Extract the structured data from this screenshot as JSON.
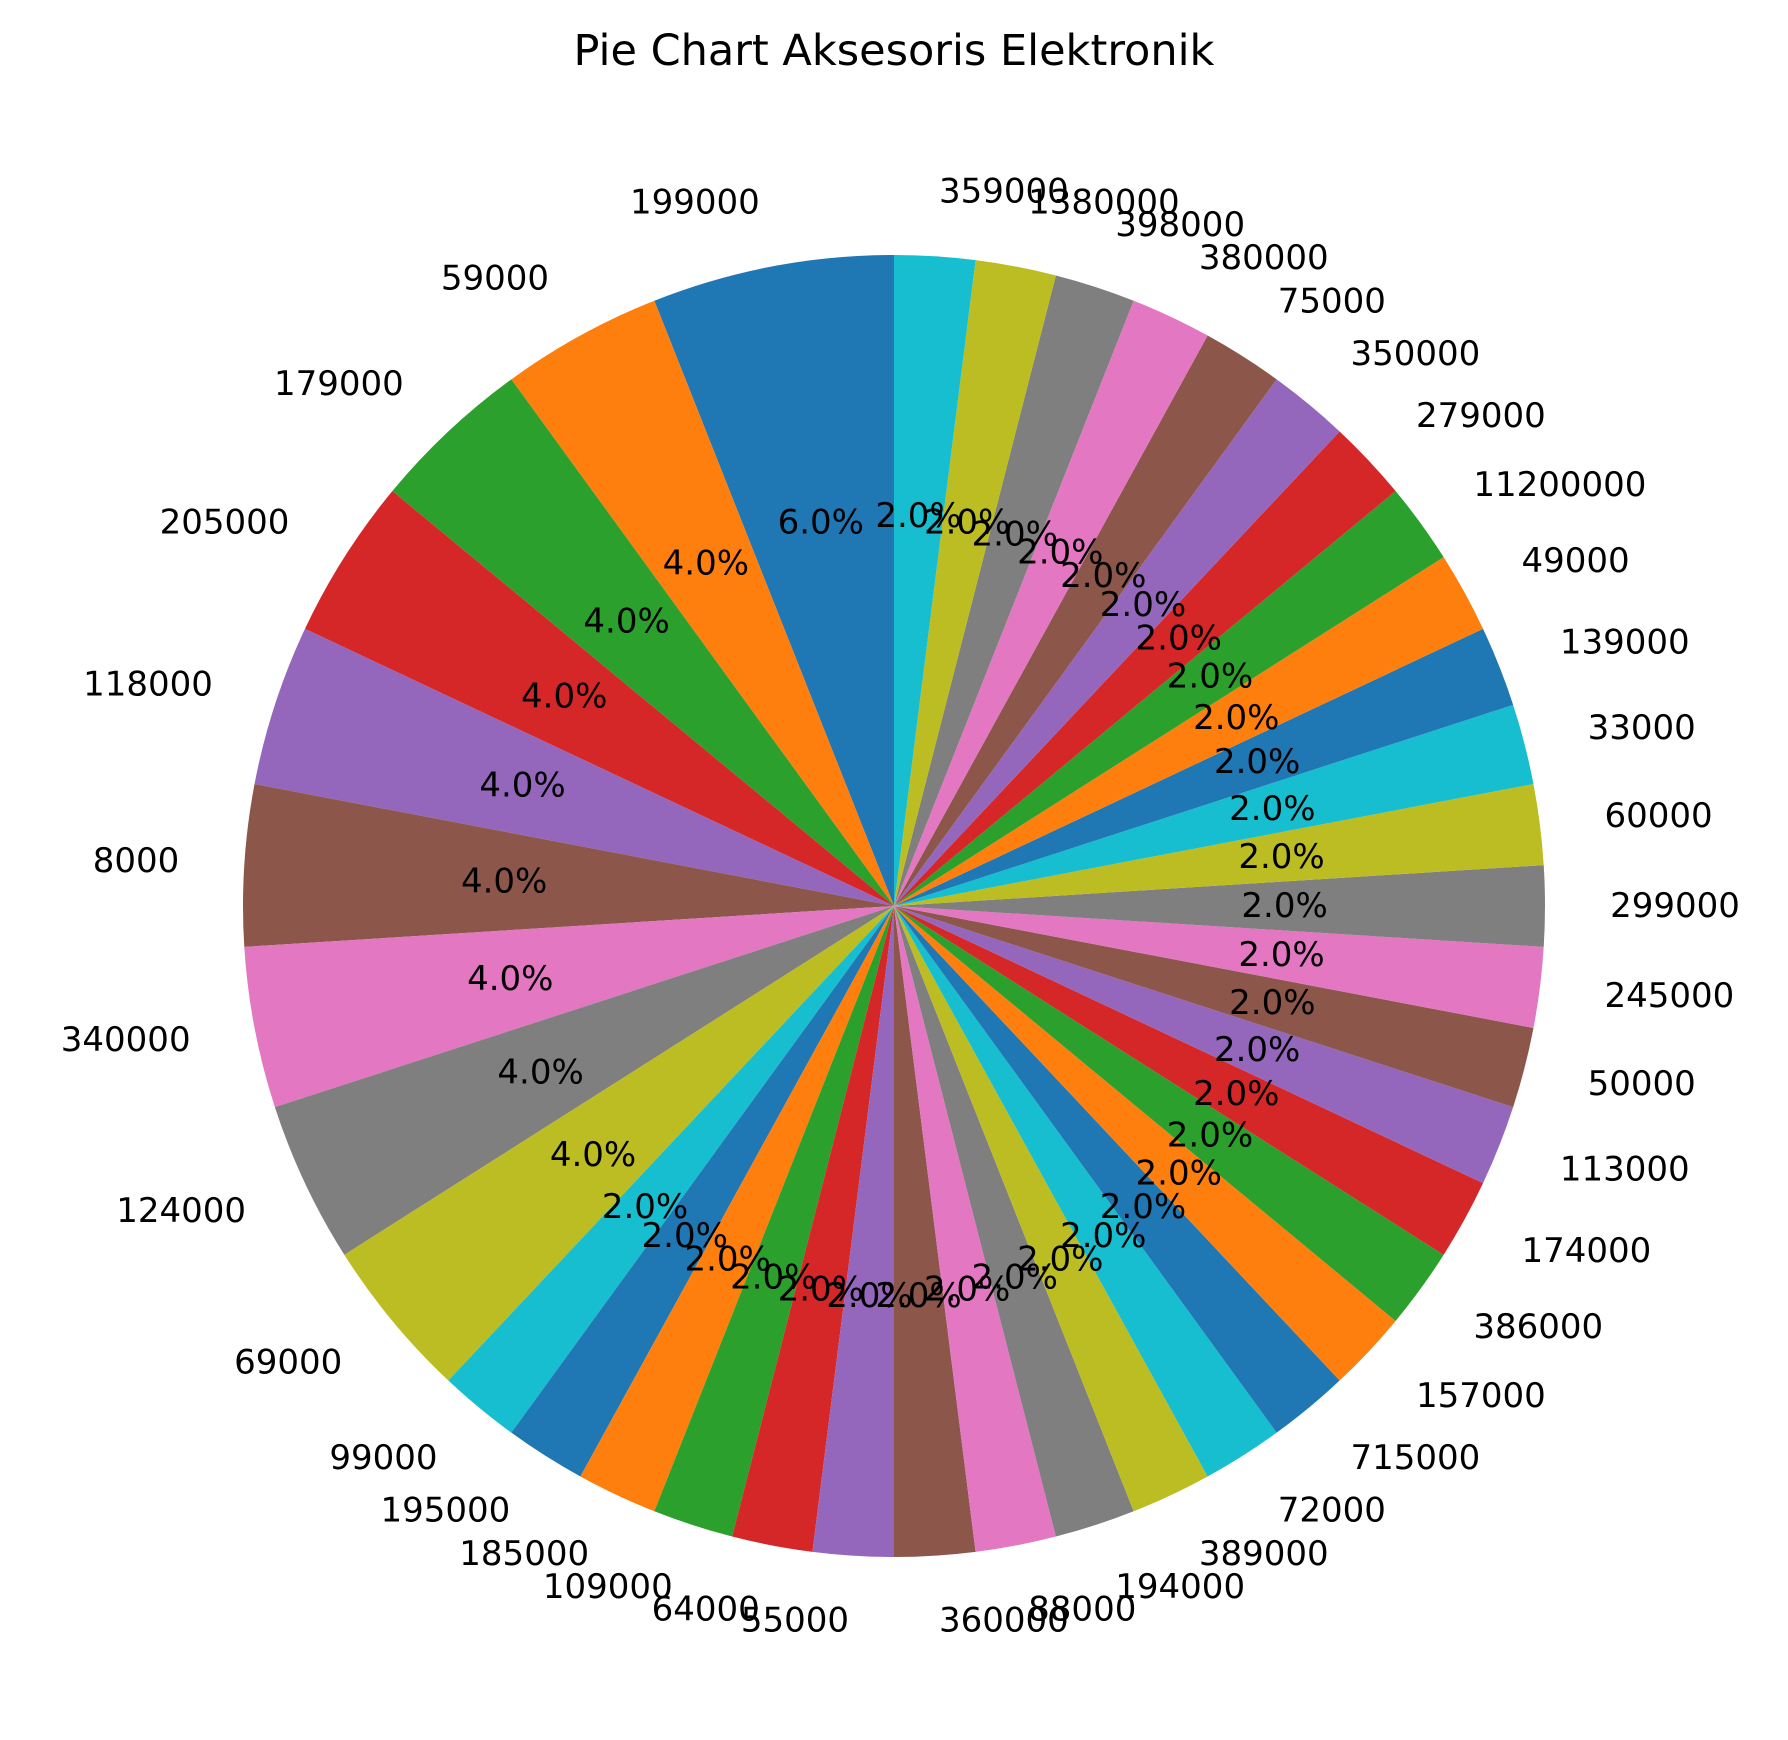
{
  "chart_data": {
    "type": "pie",
    "title": "Pie Chart Aksesoris Elektronik",
    "start_angle_deg": 90,
    "direction": "counterclockwise",
    "labels": [
      "199000",
      "59000",
      "179000",
      "205000",
      "118000",
      "8000",
      "340000",
      "124000",
      "69000",
      "99000",
      "195000",
      "185000",
      "109000",
      "64000",
      "55000",
      "360000",
      "88000",
      "194000",
      "389000",
      "72000",
      "715000",
      "157000",
      "386000",
      "174000",
      "113000",
      "50000",
      "245000",
      "299000",
      "60000",
      "33000",
      "139000",
      "49000",
      "11200000",
      "279000",
      "350000",
      "75000",
      "380000",
      "398000",
      "1380000",
      "359000"
    ],
    "values": [
      6,
      4,
      4,
      4,
      4,
      4,
      4,
      4,
      4,
      2,
      2,
      2,
      2,
      2,
      2,
      2,
      2,
      2,
      2,
      2,
      2,
      2,
      2,
      2,
      2,
      2,
      2,
      2,
      2,
      2,
      2,
      2,
      2,
      2,
      2,
      2,
      2,
      2,
      2,
      2
    ],
    "percent_labels": [
      "6.0%",
      "4.0%",
      "4.0%",
      "4.0%",
      "4.0%",
      "4.0%",
      "4.0%",
      "4.0%",
      "4.0%",
      "2.0%",
      "2.0%",
      "2.0%",
      "2.0%",
      "2.0%",
      "2.0%",
      "2.0%",
      "2.0%",
      "2.0%",
      "2.0%",
      "2.0%",
      "2.0%",
      "2.0%",
      "2.0%",
      "2.0%",
      "2.0%",
      "2.0%",
      "2.0%",
      "2.0%",
      "2.0%",
      "2.0%",
      "2.0%",
      "2.0%",
      "2.0%",
      "2.0%",
      "2.0%",
      "2.0%",
      "2.0%",
      "2.0%",
      "2.0%",
      "2.0%"
    ],
    "colors": [
      "#1f77b4",
      "#ff7f0e",
      "#2ca02c",
      "#d62728",
      "#9467bd",
      "#8c564b",
      "#e377c2",
      "#7f7f7f",
      "#bcbd22",
      "#17becf"
    ]
  }
}
